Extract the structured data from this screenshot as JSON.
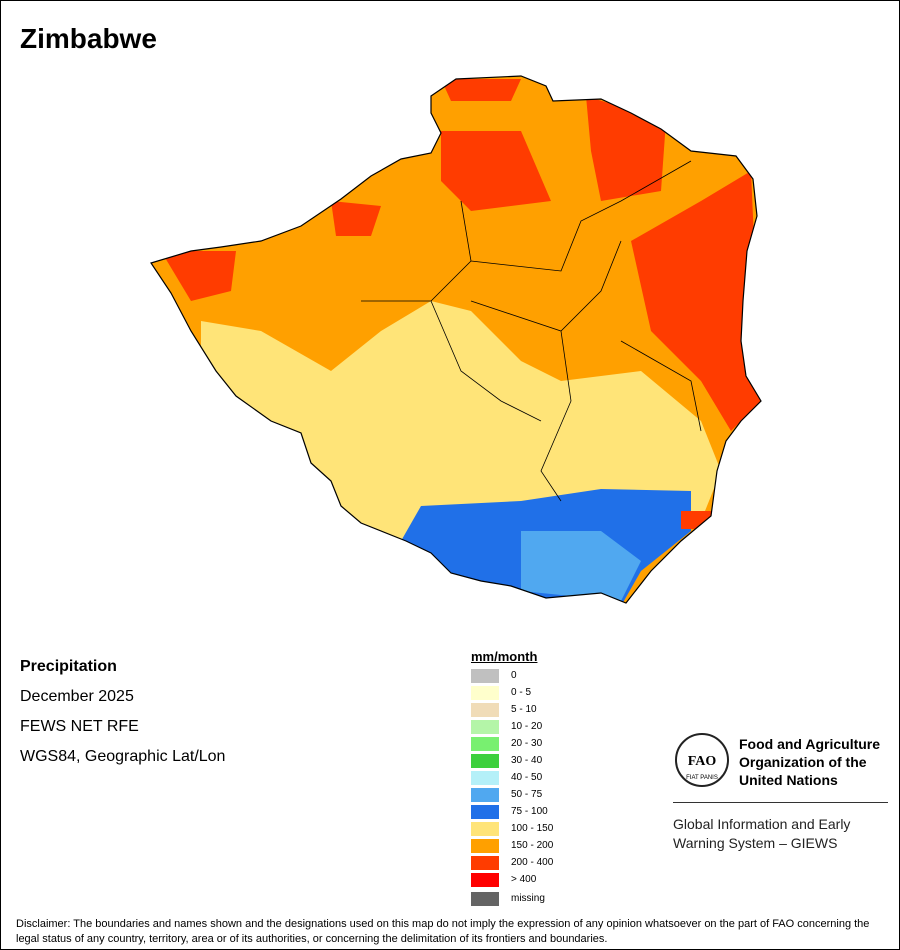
{
  "title": "Zimbabwe",
  "info": {
    "variable": "Precipitation",
    "period": "December 2025",
    "source": "FEWS NET RFE",
    "projection": "WGS84, Geographic Lat/Lon"
  },
  "legend": {
    "title": "mm/month",
    "items": [
      {
        "label": "0",
        "color": "#c0c0c0"
      },
      {
        "label": "0 - 5",
        "color": "#ffffcc"
      },
      {
        "label": "5 - 10",
        "color": "#f0dcb8"
      },
      {
        "label": "10 - 20",
        "color": "#b4f5a8"
      },
      {
        "label": "20 - 30",
        "color": "#78f070"
      },
      {
        "label": "30 - 40",
        "color": "#3cd03c"
      },
      {
        "label": "40 - 50",
        "color": "#b4f0f8"
      },
      {
        "label": "50 - 75",
        "color": "#50a8f0"
      },
      {
        "label": "75 - 100",
        "color": "#2070e8"
      },
      {
        "label": "100 - 150",
        "color": "#ffe478"
      },
      {
        "label": "150 - 200",
        "color": "#ffa000"
      },
      {
        "label": "200 - 400",
        "color": "#ff3c00"
      },
      {
        "label": "> 400",
        "color": "#ff0000"
      }
    ],
    "missing": {
      "label": "missing",
      "color": "#646464"
    }
  },
  "fao": {
    "name": "Food and Agriculture Organization of the United Nations",
    "logo_text": "FAO FIAT PANIS",
    "giews": "Global Information and Early Warning System – GIEWS"
  },
  "disclaimer": "Disclaimer: The boundaries and names shown and the designations used on this map do not imply the expression of any opinion whatsoever on the part of FAO concerning the legal status of any country, territory, area or of its authorities, or concerning the delimitation of its frontiers and boundaries."
}
